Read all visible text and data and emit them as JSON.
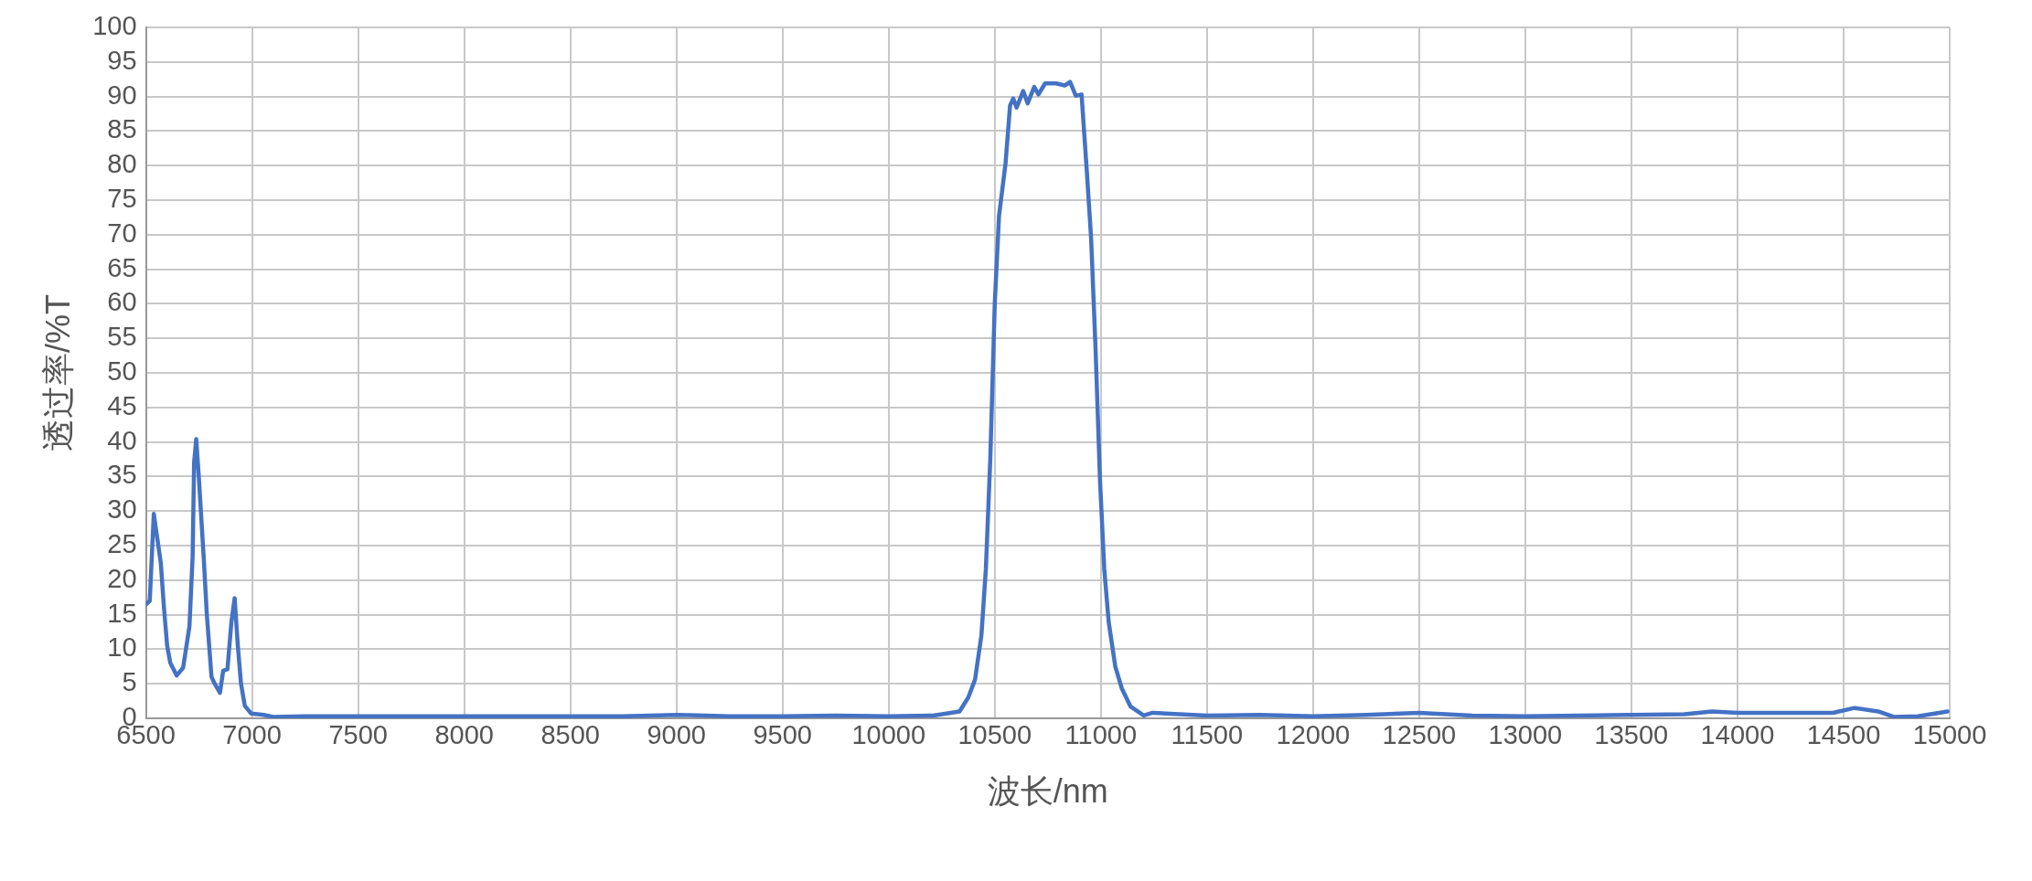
{
  "chart_data": {
    "type": "line",
    "xlabel": "波长/nm",
    "ylabel": "透过率/%T",
    "xlim": [
      6500,
      15000
    ],
    "xticks": [
      6500,
      7000,
      7500,
      8000,
      8500,
      9000,
      9500,
      10000,
      10500,
      11000,
      11500,
      12000,
      12500,
      13000,
      13500,
      14000,
      14500,
      15000
    ],
    "ylim": [
      0,
      100
    ],
    "yticks": [
      0,
      5,
      10,
      15,
      20,
      25,
      30,
      35,
      40,
      45,
      50,
      55,
      60,
      65,
      70,
      75,
      80,
      85,
      90,
      95,
      100
    ],
    "grid": true,
    "legend": false,
    "marker": "none",
    "line_style": "solid",
    "series": [
      {
        "color": "#4472c4",
        "x": [
          6500,
          6518,
          6537,
          6570,
          6585,
          6600,
          6615,
          6645,
          6675,
          6705,
          6720,
          6727,
          6737,
          6749,
          6772,
          6787,
          6809,
          6824,
          6849,
          6864,
          6884,
          6903,
          6918,
          6933,
          6948,
          6966,
          6996,
          7055,
          7100,
          7250,
          7500,
          7750,
          8000,
          8250,
          8500,
          8750,
          9000,
          9250,
          9500,
          9750,
          10000,
          10210,
          10334,
          10375,
          10407,
          10437,
          10458,
          10479,
          10500,
          10520,
          10551,
          10572,
          10587,
          10603,
          10634,
          10655,
          10686,
          10706,
          10737,
          10789,
          10830,
          10855,
          10882,
          10909,
          10934,
          10954,
          10975,
          10996,
          11016,
          11037,
          11068,
          11099,
          11140,
          11202,
          11244,
          11500,
          11750,
          12000,
          12250,
          12500,
          12750,
          13000,
          13250,
          13500,
          13750,
          13881,
          14000,
          14250,
          14450,
          14551,
          14663,
          14737,
          14850,
          14990
        ],
        "values": [
          16.5,
          17,
          29.6,
          22.5,
          16,
          10.5,
          8,
          6.2,
          7.3,
          13.3,
          23.4,
          37,
          40.4,
          35,
          23.4,
          15,
          6,
          5,
          3.7,
          6.9,
          7.1,
          14,
          17.4,
          10.5,
          5,
          1.8,
          0.7,
          0.5,
          0.2,
          0.3,
          0.3,
          0.3,
          0.3,
          0.3,
          0.3,
          0.3,
          0.5,
          0.3,
          0.3,
          0.4,
          0.3,
          0.4,
          1,
          3,
          5.6,
          12,
          21.6,
          37.6,
          60,
          72.7,
          80.4,
          88.7,
          89.7,
          88.4,
          90.8,
          89,
          91.4,
          90.3,
          91.9,
          91.9,
          91.6,
          92.1,
          90.1,
          90.3,
          79.1,
          69.5,
          53.5,
          34.4,
          21.6,
          13.9,
          7.5,
          4.3,
          1.7,
          0.4,
          0.8,
          0.4,
          0.5,
          0.3,
          0.5,
          0.8,
          0.4,
          0.3,
          0.4,
          0.5,
          0.6,
          1,
          0.8,
          0.8,
          0.8,
          1.5,
          1,
          0.2,
          0.3,
          1
        ]
      }
    ]
  }
}
